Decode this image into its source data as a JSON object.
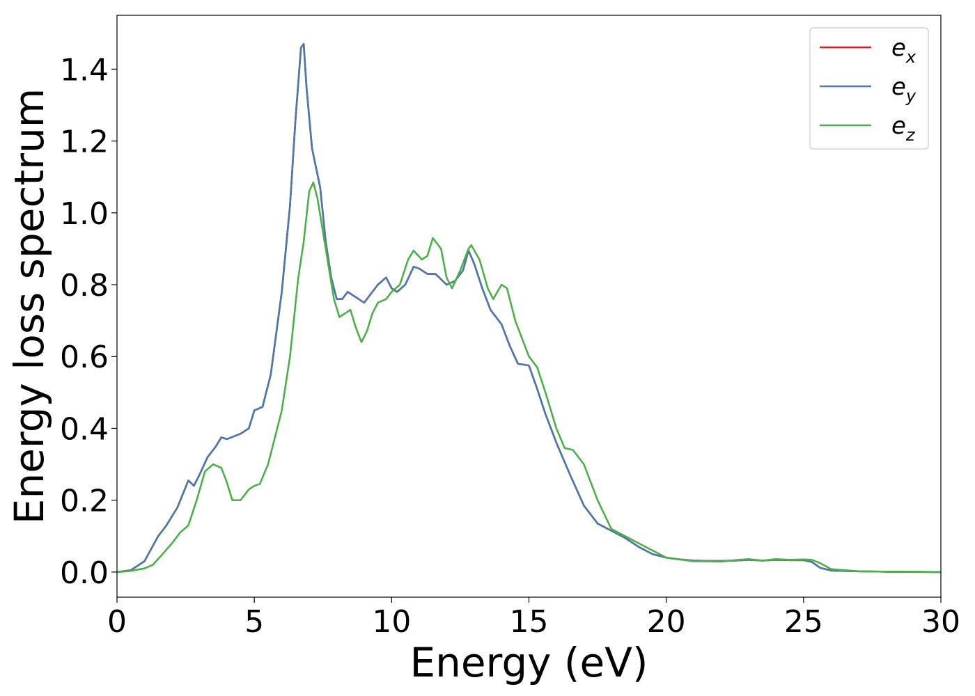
{
  "chart_data": {
    "type": "line",
    "title": "",
    "xlabel": "Energy (eV)",
    "ylabel": "Energy loss spectrum",
    "xlim": [
      0,
      30
    ],
    "ylim": [
      -0.07,
      1.55
    ],
    "xticks": [
      "0",
      "5",
      "10",
      "15",
      "20",
      "25",
      "30"
    ],
    "yticks": [
      "0.0",
      "0.2",
      "0.4",
      "0.6",
      "0.8",
      "1.0",
      "1.2",
      "1.4"
    ],
    "grid": false,
    "legend_position": "top-right",
    "series": [
      {
        "name": "e_x",
        "legend_base": "e",
        "legend_sub": "x",
        "color": "#e41a1c",
        "x": [
          0,
          0.5,
          1,
          1.5,
          1.8,
          2.2,
          2.6,
          2.8,
          3,
          3.3,
          3.6,
          3.8,
          4,
          4.5,
          4.8,
          5,
          5.3,
          5.6,
          6,
          6.3,
          6.5,
          6.7,
          6.8,
          6.9,
          7.1,
          7.4,
          7.6,
          7.8,
          8,
          8.2,
          8.4,
          8.6,
          8.8,
          9,
          9.2,
          9.5,
          9.8,
          10,
          10.2,
          10.5,
          10.8,
          11,
          11.3,
          11.6,
          12,
          12.3,
          12.6,
          12.8,
          13,
          13.3,
          13.6,
          13.8,
          14,
          14.3,
          14.6,
          15,
          15.3,
          15.6,
          16,
          16.5,
          17,
          17.5,
          18,
          18.5,
          19,
          19.5,
          20,
          20.5,
          21,
          21.5,
          22,
          22.5,
          23,
          23.5,
          24,
          24.5,
          25,
          25.3,
          25.6,
          26,
          27,
          28,
          29,
          30
        ],
        "y": [
          0,
          0.005,
          0.03,
          0.1,
          0.13,
          0.18,
          0.255,
          0.24,
          0.27,
          0.32,
          0.35,
          0.375,
          0.37,
          0.385,
          0.4,
          0.45,
          0.46,
          0.55,
          0.78,
          1.02,
          1.26,
          1.46,
          1.47,
          1.35,
          1.18,
          1.07,
          0.92,
          0.82,
          0.76,
          0.76,
          0.78,
          0.77,
          0.76,
          0.75,
          0.77,
          0.8,
          0.82,
          0.79,
          0.78,
          0.8,
          0.85,
          0.845,
          0.83,
          0.83,
          0.8,
          0.81,
          0.84,
          0.895,
          0.86,
          0.79,
          0.73,
          0.71,
          0.69,
          0.63,
          0.58,
          0.575,
          0.51,
          0.44,
          0.36,
          0.27,
          0.185,
          0.135,
          0.115,
          0.095,
          0.07,
          0.05,
          0.04,
          0.035,
          0.032,
          0.031,
          0.031,
          0.032,
          0.034,
          0.032,
          0.034,
          0.033,
          0.033,
          0.028,
          0.012,
          0.004,
          0.002,
          0.001,
          0.0005,
          0
        ]
      },
      {
        "name": "e_y",
        "legend_base": "e",
        "legend_sub": "y",
        "color": "#4a79ac",
        "x": [
          0,
          0.5,
          1,
          1.5,
          1.8,
          2.2,
          2.6,
          2.8,
          3,
          3.3,
          3.6,
          3.8,
          4,
          4.5,
          4.8,
          5,
          5.3,
          5.6,
          6,
          6.3,
          6.5,
          6.7,
          6.8,
          6.9,
          7.1,
          7.4,
          7.6,
          7.8,
          8,
          8.2,
          8.4,
          8.6,
          8.8,
          9,
          9.2,
          9.5,
          9.8,
          10,
          10.2,
          10.5,
          10.8,
          11,
          11.3,
          11.6,
          12,
          12.3,
          12.6,
          12.8,
          13,
          13.3,
          13.6,
          13.8,
          14,
          14.3,
          14.6,
          15,
          15.3,
          15.6,
          16,
          16.5,
          17,
          17.5,
          18,
          18.5,
          19,
          19.5,
          20,
          20.5,
          21,
          21.5,
          22,
          22.5,
          23,
          23.5,
          24,
          24.5,
          25,
          25.3,
          25.6,
          26,
          27,
          28,
          29,
          30
        ],
        "y": [
          0,
          0.005,
          0.03,
          0.1,
          0.13,
          0.18,
          0.255,
          0.24,
          0.27,
          0.32,
          0.35,
          0.375,
          0.37,
          0.385,
          0.4,
          0.45,
          0.46,
          0.55,
          0.78,
          1.02,
          1.26,
          1.46,
          1.47,
          1.35,
          1.18,
          1.07,
          0.92,
          0.82,
          0.76,
          0.76,
          0.78,
          0.77,
          0.76,
          0.75,
          0.77,
          0.8,
          0.82,
          0.79,
          0.78,
          0.8,
          0.85,
          0.845,
          0.83,
          0.83,
          0.8,
          0.81,
          0.84,
          0.895,
          0.86,
          0.79,
          0.73,
          0.71,
          0.69,
          0.63,
          0.58,
          0.575,
          0.51,
          0.44,
          0.36,
          0.27,
          0.185,
          0.135,
          0.115,
          0.095,
          0.07,
          0.05,
          0.04,
          0.035,
          0.032,
          0.031,
          0.031,
          0.032,
          0.034,
          0.032,
          0.034,
          0.033,
          0.033,
          0.028,
          0.012,
          0.004,
          0.002,
          0.001,
          0.0005,
          0
        ]
      },
      {
        "name": "e_z",
        "legend_base": "e",
        "legend_sub": "z",
        "color": "#4daf4a",
        "x": [
          0,
          0.5,
          1,
          1.3,
          1.6,
          2,
          2.3,
          2.6,
          2.9,
          3.2,
          3.5,
          3.8,
          4,
          4.2,
          4.5,
          4.8,
          5,
          5.2,
          5.5,
          6,
          6.3,
          6.6,
          6.8,
          7,
          7.15,
          7.3,
          7.6,
          7.9,
          8.1,
          8.3,
          8.5,
          8.7,
          8.9,
          9.1,
          9.3,
          9.5,
          9.8,
          10,
          10.3,
          10.6,
          10.8,
          11.1,
          11.3,
          11.5,
          11.8,
          12,
          12.2,
          12.5,
          12.8,
          12.9,
          13.2,
          13.5,
          13.7,
          14,
          14.2,
          14.5,
          14.8,
          15,
          15.3,
          15.6,
          16,
          16.3,
          16.6,
          17,
          17.5,
          18,
          18.5,
          19,
          19.5,
          20,
          20.5,
          21,
          21.5,
          22,
          22.5,
          23,
          23.5,
          24,
          24.5,
          25,
          25.3,
          25.6,
          26,
          27,
          28,
          29,
          30
        ],
        "y": [
          0,
          0.003,
          0.01,
          0.02,
          0.045,
          0.08,
          0.11,
          0.13,
          0.2,
          0.28,
          0.3,
          0.29,
          0.25,
          0.2,
          0.2,
          0.23,
          0.24,
          0.245,
          0.3,
          0.45,
          0.6,
          0.82,
          0.92,
          1.06,
          1.085,
          1.04,
          0.9,
          0.76,
          0.71,
          0.72,
          0.73,
          0.68,
          0.64,
          0.67,
          0.72,
          0.75,
          0.76,
          0.78,
          0.8,
          0.87,
          0.895,
          0.87,
          0.88,
          0.93,
          0.9,
          0.82,
          0.79,
          0.84,
          0.9,
          0.91,
          0.87,
          0.79,
          0.76,
          0.8,
          0.79,
          0.7,
          0.64,
          0.6,
          0.57,
          0.5,
          0.4,
          0.345,
          0.34,
          0.3,
          0.2,
          0.12,
          0.1,
          0.08,
          0.06,
          0.04,
          0.035,
          0.03,
          0.03,
          0.029,
          0.033,
          0.036,
          0.032,
          0.036,
          0.034,
          0.035,
          0.034,
          0.025,
          0.008,
          0.002,
          0.001,
          0.0005,
          0
        ]
      }
    ]
  }
}
